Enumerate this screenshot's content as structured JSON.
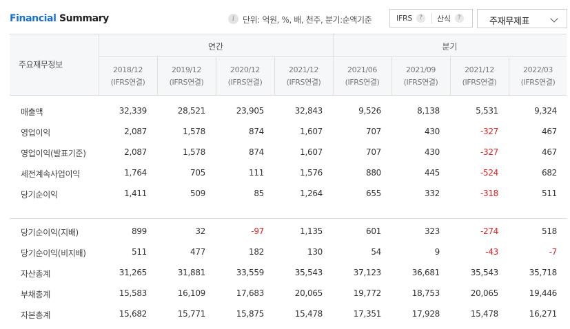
{
  "header": {
    "title_part1": "Financial",
    "title_part2": " Summary",
    "info_icon": "info-icon",
    "unit_text": "단위: 억원, %, 배, 천주, 분기:순액기준",
    "options": [
      {
        "label": "IFRS",
        "help_icon": "question-icon"
      },
      {
        "label": "산식",
        "help_icon": "question-icon"
      }
    ],
    "select": {
      "label": "주재무제표",
      "icon": "chevron-down-icon"
    }
  },
  "table": {
    "row_header_label": "주요재무정보",
    "groups": [
      "연간",
      "분기"
    ],
    "columns": [
      {
        "period": "2018/12",
        "basis": "(IFRS연결)"
      },
      {
        "period": "2019/12",
        "basis": "(IFRS연결)"
      },
      {
        "period": "2020/12",
        "basis": "(IFRS연결)"
      },
      {
        "period": "2021/12",
        "basis": "(IFRS연결)"
      },
      {
        "period": "2021/06",
        "basis": "(IFRS연결)"
      },
      {
        "period": "2021/09",
        "basis": "(IFRS연결)"
      },
      {
        "period": "2021/12",
        "basis": "(IFRS연결)"
      },
      {
        "period": "2022/03",
        "basis": "(IFRS연결)"
      }
    ],
    "rows": [
      {
        "label": "매출액",
        "values": [
          "32,339",
          "28,521",
          "23,905",
          "32,843",
          "9,526",
          "8,138",
          "5,531",
          "9,324"
        ]
      },
      {
        "label": "영업이익",
        "values": [
          "2,087",
          "1,578",
          "874",
          "1,607",
          "707",
          "430",
          "-327",
          "467"
        ]
      },
      {
        "label": "영업이익(발표기준)",
        "values": [
          "2,087",
          "1,578",
          "874",
          "1,607",
          "707",
          "430",
          "-327",
          "467"
        ]
      },
      {
        "label": "세전계속사업이익",
        "values": [
          "1,764",
          "705",
          "111",
          "1,576",
          "880",
          "445",
          "-524",
          "682"
        ]
      },
      {
        "label": "당기순이익",
        "values": [
          "1,411",
          "509",
          "85",
          "1,264",
          "655",
          "332",
          "-318",
          "511"
        ]
      },
      {
        "label": "당기순이익(지배)",
        "values": [
          "899",
          "32",
          "-97",
          "1,135",
          "601",
          "323",
          "-274",
          "518"
        ]
      },
      {
        "label": "당기순이익(비지배)",
        "values": [
          "511",
          "477",
          "182",
          "130",
          "54",
          "9",
          "-43",
          "-7"
        ]
      },
      {
        "label": "자산총계",
        "values": [
          "31,265",
          "31,881",
          "33,559",
          "35,543",
          "37,123",
          "36,681",
          "35,543",
          "35,718"
        ]
      },
      {
        "label": "부채총계",
        "values": [
          "15,583",
          "16,109",
          "17,683",
          "20,065",
          "19,772",
          "18,753",
          "20,065",
          "19,446"
        ]
      },
      {
        "label": "자본총계",
        "values": [
          "15,682",
          "15,771",
          "15,875",
          "15,478",
          "17,351",
          "17,928",
          "15,478",
          "16,271"
        ]
      }
    ]
  },
  "colors": {
    "accent": "#1a6fd4",
    "negative": "#e02020"
  }
}
